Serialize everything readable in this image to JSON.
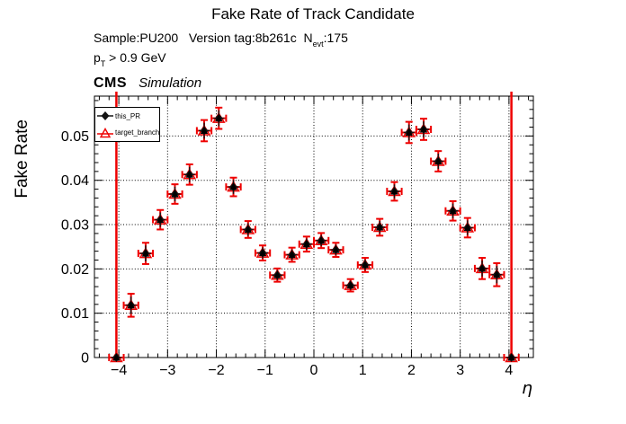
{
  "header": {
    "title": "Fake Rate of Track Candidate",
    "sample_line": {
      "prefix": "Sample:PU200   Version tag:8b261c  N",
      "sub": "evt",
      "suffix": ":175"
    },
    "cut_line": {
      "prefix": "p",
      "sub": "T",
      "suffix": " > 0.9 GeV"
    },
    "experiment": "CMS",
    "experiment_label": "Simulation"
  },
  "legend": {
    "entries": [
      {
        "label": "this_PR",
        "marker": "black-filled-diamond"
      },
      {
        "label": "target_branch",
        "marker": "red-open-triangle"
      }
    ]
  },
  "axes": {
    "x": {
      "title": "η",
      "lim": [
        -4.5,
        4.5
      ],
      "minor_step": 0.2,
      "ticks": [
        {
          "v": -4,
          "label": "−4"
        },
        {
          "v": -3,
          "label": "−3"
        },
        {
          "v": -2,
          "label": "−2"
        },
        {
          "v": -1,
          "label": "−1"
        },
        {
          "v": 0,
          "label": "0"
        },
        {
          "v": 1,
          "label": "1"
        },
        {
          "v": 2,
          "label": "2"
        },
        {
          "v": 3,
          "label": "3"
        },
        {
          "v": 4,
          "label": "4"
        }
      ]
    },
    "y": {
      "title": "Fake Rate",
      "lim": [
        0,
        0.059
      ],
      "minor_step": 0.002,
      "ticks": [
        {
          "v": 0,
          "label": "0"
        },
        {
          "v": 0.01,
          "label": "0.01"
        },
        {
          "v": 0.02,
          "label": "0.02"
        },
        {
          "v": 0.03,
          "label": "0.03"
        },
        {
          "v": 0.04,
          "label": "0.04"
        },
        {
          "v": 0.05,
          "label": "0.05"
        }
      ]
    }
  },
  "colors": {
    "accent_red": "#ee0000",
    "marker_black": "#141414",
    "grid": "#000000",
    "frame": "#000000"
  },
  "chart_data": {
    "type": "scatter",
    "title": "Fake Rate of Track Candidate",
    "xlabel": "η",
    "ylabel": "Fake Rate",
    "xlim": [
      -4.5,
      4.5
    ],
    "ylim": [
      0,
      0.059
    ],
    "grid": true,
    "legend_position": "top-left",
    "bin_width": 0.3,
    "x": [
      -4.05,
      -3.75,
      -3.45,
      -3.15,
      -2.85,
      -2.55,
      -2.25,
      -1.95,
      -1.65,
      -1.35,
      -1.05,
      -0.75,
      -0.45,
      -0.15,
      0.15,
      0.45,
      0.75,
      1.05,
      1.35,
      1.65,
      1.95,
      2.25,
      2.55,
      2.85,
      3.15,
      3.45,
      3.75,
      4.05
    ],
    "xerr": 0.15,
    "yerr": [
      0.2,
      0.0026,
      0.0024,
      0.0022,
      0.0022,
      0.0023,
      0.0024,
      0.0024,
      0.0021,
      0.0019,
      0.0017,
      0.0015,
      0.0016,
      0.0017,
      0.0017,
      0.0016,
      0.0014,
      0.0016,
      0.0019,
      0.0021,
      0.0024,
      0.0024,
      0.0023,
      0.0022,
      0.0022,
      0.0024,
      0.0026,
      0.2
    ],
    "series": [
      {
        "name": "this_PR",
        "marker": "filled-diamond",
        "color": "#141414",
        "values": [
          0,
          0.0118,
          0.0235,
          0.0311,
          0.0369,
          0.0413,
          0.0512,
          0.054,
          0.0385,
          0.0289,
          0.0236,
          0.0186,
          0.0232,
          0.0256,
          0.0264,
          0.0243,
          0.0163,
          0.0209,
          0.0294,
          0.0375,
          0.0508,
          0.0515,
          0.0443,
          0.0331,
          0.0293,
          0.0201,
          0.0187,
          0
        ]
      },
      {
        "name": "target_branch",
        "marker": "open-triangle",
        "color": "#ee0000",
        "values": [
          0,
          0.0118,
          0.0235,
          0.0311,
          0.0369,
          0.0413,
          0.0512,
          0.054,
          0.0385,
          0.0289,
          0.0236,
          0.0186,
          0.0232,
          0.0256,
          0.0264,
          0.0243,
          0.0163,
          0.0209,
          0.0294,
          0.0375,
          0.0508,
          0.0515,
          0.0443,
          0.0331,
          0.0293,
          0.0201,
          0.0187,
          0
        ]
      }
    ]
  }
}
